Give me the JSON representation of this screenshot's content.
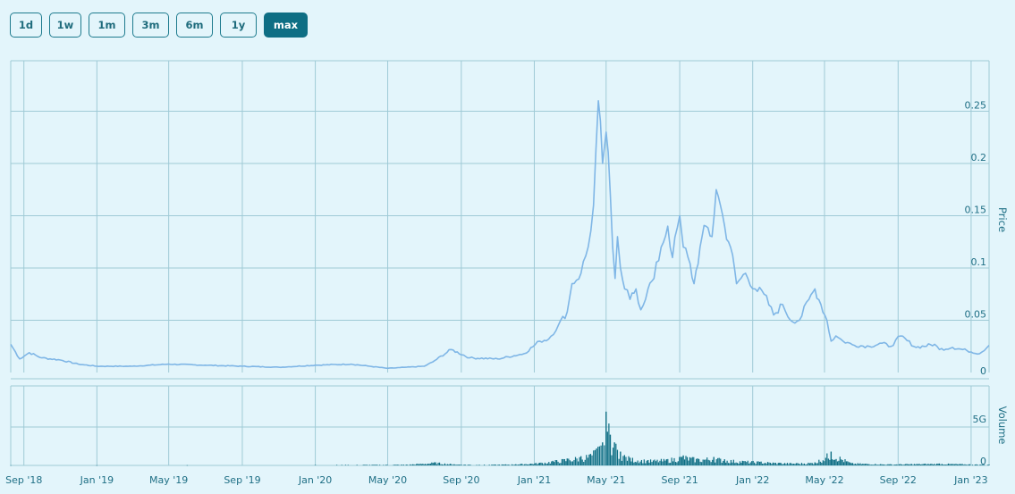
{
  "range_buttons": [
    {
      "label": "1d",
      "active": false
    },
    {
      "label": "1w",
      "active": false
    },
    {
      "label": "1m",
      "active": false
    },
    {
      "label": "3m",
      "active": false
    },
    {
      "label": "6m",
      "active": false
    },
    {
      "label": "1y",
      "active": false
    },
    {
      "label": "max",
      "active": true
    }
  ],
  "colors": {
    "background": "#e3f5fb",
    "price_line": "#7fb6e6",
    "volume_bars": "#0e6e84",
    "grid": "#9fcad6",
    "text": "#1f6f85"
  },
  "chart_data": [
    {
      "type": "line",
      "ylabel": "Price",
      "yticks": [
        "0",
        "0.05",
        "0.1",
        "0.15",
        "0.2",
        "0.25"
      ],
      "ylim": [
        0,
        0.27
      ],
      "xlim": [
        "2018-08-10",
        "2023-01-31"
      ],
      "grid": true,
      "x": [
        "2018-08-10",
        "2018-08-25",
        "2018-09-10",
        "2018-10-01",
        "2018-11-01",
        "2018-12-01",
        "2019-01-01",
        "2019-03-01",
        "2019-05-01",
        "2019-07-01",
        "2019-09-01",
        "2019-11-01",
        "2020-01-01",
        "2020-03-01",
        "2020-04-01",
        "2020-05-01",
        "2020-06-01",
        "2020-07-01",
        "2020-07-15",
        "2020-08-15",
        "2020-09-15",
        "2020-11-01",
        "2020-12-15",
        "2021-01-10",
        "2021-01-25",
        "2021-02-10",
        "2021-02-25",
        "2021-03-05",
        "2021-03-20",
        "2021-04-01",
        "2021-04-10",
        "2021-04-18",
        "2021-04-25",
        "2021-05-01",
        "2021-05-08",
        "2021-05-12",
        "2021-05-16",
        "2021-05-20",
        "2021-05-25",
        "2021-06-01",
        "2021-06-10",
        "2021-06-20",
        "2021-06-28",
        "2021-07-10",
        "2021-07-20",
        "2021-08-01",
        "2021-08-12",
        "2021-08-20",
        "2021-09-01",
        "2021-09-07",
        "2021-09-15",
        "2021-09-25",
        "2021-10-05",
        "2021-10-15",
        "2021-10-25",
        "2021-11-01",
        "2021-11-08",
        "2021-11-15",
        "2021-11-25",
        "2021-12-05",
        "2021-12-20",
        "2022-01-05",
        "2022-01-20",
        "2022-02-05",
        "2022-02-20",
        "2022-03-05",
        "2022-03-20",
        "2022-04-05",
        "2022-04-15",
        "2022-04-25",
        "2022-05-05",
        "2022-05-12",
        "2022-05-20",
        "2022-06-01",
        "2022-06-20",
        "2022-07-15",
        "2022-08-05",
        "2022-08-20",
        "2022-09-05",
        "2022-10-01",
        "2022-11-01",
        "2022-11-09",
        "2022-12-01",
        "2022-12-25",
        "2023-01-15",
        "2023-01-31"
      ],
      "series": [
        {
          "values": [
            0.027,
            0.013,
            0.019,
            0.014,
            0.012,
            0.008,
            0.006,
            0.006,
            0.008,
            0.007,
            0.006,
            0.005,
            0.007,
            0.008,
            0.006,
            0.004,
            0.005,
            0.006,
            0.01,
            0.022,
            0.014,
            0.013,
            0.018,
            0.03,
            0.032,
            0.045,
            0.058,
            0.085,
            0.095,
            0.12,
            0.16,
            0.26,
            0.2,
            0.23,
            0.17,
            0.12,
            0.09,
            0.13,
            0.1,
            0.08,
            0.07,
            0.08,
            0.06,
            0.08,
            0.09,
            0.12,
            0.14,
            0.11,
            0.15,
            0.12,
            0.11,
            0.085,
            0.12,
            0.14,
            0.13,
            0.175,
            0.16,
            0.14,
            0.12,
            0.085,
            0.095,
            0.08,
            0.075,
            0.055,
            0.065,
            0.05,
            0.05,
            0.07,
            0.08,
            0.065,
            0.05,
            0.03,
            0.035,
            0.03,
            0.026,
            0.025,
            0.028,
            0.025,
            0.035,
            0.024,
            0.027,
            0.022,
            0.024,
            0.021,
            0.018,
            0.026
          ]
        }
      ]
    },
    {
      "type": "bar",
      "ylabel": "Volume",
      "yticks": [
        "0",
        "5G"
      ],
      "ylim": [
        0,
        8000000000
      ],
      "x": [
        "2018-08-10",
        "2019-01-01",
        "2019-06-01",
        "2020-01-01",
        "2020-06-01",
        "2020-07-20",
        "2020-08-20",
        "2020-10-01",
        "2020-12-01",
        "2021-01-10",
        "2021-02-01",
        "2021-02-25",
        "2021-03-20",
        "2021-04-05",
        "2021-04-15",
        "2021-04-25",
        "2021-05-01",
        "2021-05-08",
        "2021-05-15",
        "2021-05-25",
        "2021-06-10",
        "2021-07-10",
        "2021-08-10",
        "2021-09-07",
        "2021-10-01",
        "2021-10-28",
        "2021-11-15",
        "2021-12-15",
        "2022-01-15",
        "2022-02-15",
        "2022-03-15",
        "2022-04-15",
        "2022-05-12",
        "2022-06-15",
        "2022-08-15",
        "2022-11-09",
        "2023-01-31"
      ],
      "series": [
        {
          "values": [
            20000000,
            20000000,
            30000000,
            60000000,
            100000000,
            400000000,
            150000000,
            80000000,
            150000000,
            350000000,
            600000000,
            900000000,
            1200000000,
            1500000000,
            2200000000,
            3000000000,
            7000000000,
            4000000000,
            3000000000,
            1800000000,
            1000000000,
            700000000,
            800000000,
            1300000000,
            900000000,
            1100000000,
            800000000,
            600000000,
            500000000,
            350000000,
            300000000,
            400000000,
            1800000000,
            300000000,
            150000000,
            250000000,
            100000000
          ]
        }
      ]
    }
  ],
  "x_tick_labels": [
    "Sep '18",
    "Jan '19",
    "May '19",
    "Sep '19",
    "Jan '20",
    "May '20",
    "Sep '20",
    "Jan '21",
    "May '21",
    "Sep '21",
    "Jan '22",
    "May '22",
    "Sep '22",
    "Jan '23"
  ]
}
